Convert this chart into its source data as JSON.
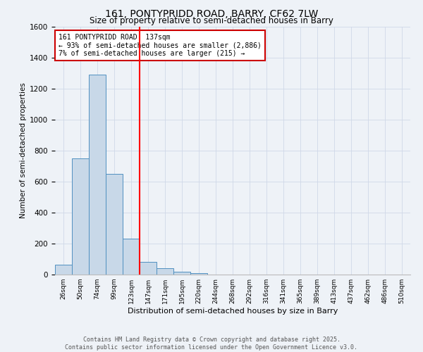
{
  "title_line1": "161, PONTYPRIDD ROAD, BARRY, CF62 7LW",
  "title_line2": "Size of property relative to semi-detached houses in Barry",
  "xlabel": "Distribution of semi-detached houses by size in Barry",
  "ylabel": "Number of semi-detached properties",
  "categories": [
    "26sqm",
    "50sqm",
    "74sqm",
    "99sqm",
    "123sqm",
    "147sqm",
    "171sqm",
    "195sqm",
    "220sqm",
    "244sqm",
    "268sqm",
    "292sqm",
    "316sqm",
    "341sqm",
    "365sqm",
    "389sqm",
    "413sqm",
    "437sqm",
    "462sqm",
    "486sqm",
    "510sqm"
  ],
  "values": [
    65,
    750,
    1290,
    650,
    230,
    80,
    43,
    20,
    10,
    0,
    0,
    0,
    0,
    0,
    0,
    0,
    0,
    0,
    0,
    0,
    0
  ],
  "bar_color": "#c8d8e8",
  "bar_edge_color": "#5090c0",
  "red_line_x": 4.5,
  "annotation_title": "161 PONTYPRIDD ROAD: 137sqm",
  "annotation_line2": "← 93% of semi-detached houses are smaller (2,886)",
  "annotation_line3": "7% of semi-detached houses are larger (215) →",
  "annotation_box_color": "#ffffff",
  "annotation_box_edge": "#cc0000",
  "ylim": [
    0,
    1600
  ],
  "yticks": [
    0,
    200,
    400,
    600,
    800,
    1000,
    1200,
    1400,
    1600
  ],
  "grid_color": "#d0d8e8",
  "bg_color": "#eef2f7",
  "footer_line1": "Contains HM Land Registry data © Crown copyright and database right 2025.",
  "footer_line2": "Contains public sector information licensed under the Open Government Licence v3.0."
}
